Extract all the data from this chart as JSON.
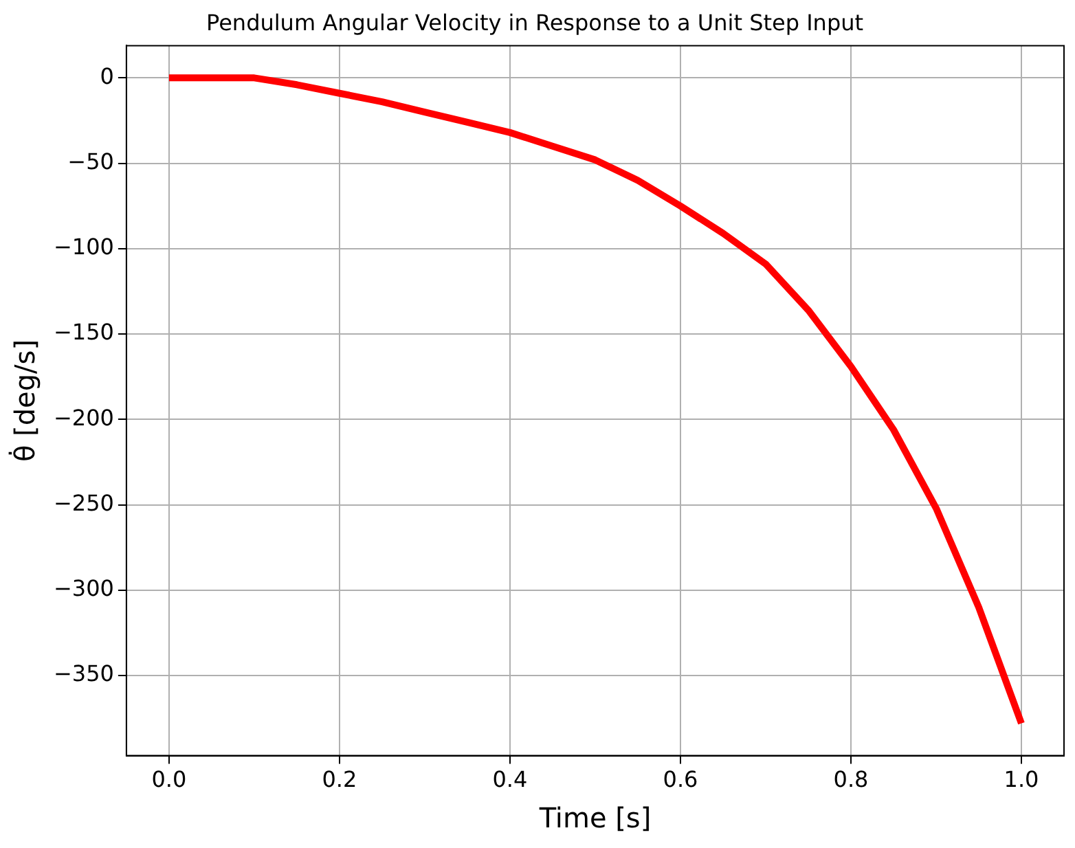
{
  "chart_data": {
    "type": "line",
    "title": "Pendulum Angular Velocity in Response to a Unit Step Input",
    "xlabel": "Time [s]",
    "ylabel": "θ̇ [deg/s]",
    "x": [
      0,
      0.05,
      0.1,
      0.15,
      0.2,
      0.25,
      0.3,
      0.35,
      0.4,
      0.45,
      0.5,
      0.55,
      0.6,
      0.65,
      0.7,
      0.75,
      0.8,
      0.85,
      0.9,
      0.95,
      1.0
    ],
    "series": [
      {
        "color": "#ff0000",
        "values": [
          0,
          0,
          0,
          -4,
          -9,
          -14,
          -20,
          -26,
          -32,
          -40,
          -48,
          -60,
          -75,
          -91,
          -109,
          -136,
          -169,
          -206,
          -252,
          -310,
          -378
        ]
      }
    ],
    "xlim": [
      -0.05,
      1.05
    ],
    "xticks": [
      {
        "value": 0,
        "label": "0.0"
      },
      0.2,
      0.4,
      0.6,
      0.8,
      {
        "value": 1,
        "label": "1.0"
      }
    ],
    "ylim": [
      -396.9,
      18.9
    ],
    "yticks": [
      0,
      -50,
      -100,
      -150,
      -200,
      -250,
      -300,
      -350
    ],
    "grid": true,
    "legend": false,
    "marker": "none",
    "line_style": "solid"
  }
}
